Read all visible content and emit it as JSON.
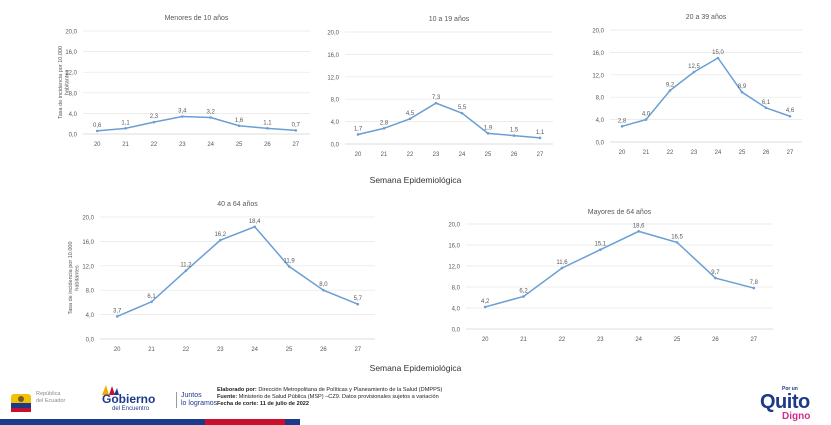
{
  "chart_data": [
    {
      "type": "line",
      "title": "Menores de 10 años",
      "ylabel": "Tasa de incidencia por 10.000 habitantes",
      "x": [
        "20",
        "21",
        "22",
        "23",
        "24",
        "25",
        "26",
        "27"
      ],
      "values": [
        0.6,
        1.1,
        2.3,
        3.4,
        3.2,
        1.6,
        1.1,
        0.7
      ],
      "labels": [
        "0,6",
        "1,1",
        "2,3",
        "3,4",
        "3,2",
        "1,6",
        "1,1",
        "0,7"
      ],
      "yticks": [
        "0,0",
        "4,0",
        "8,0",
        "12,0",
        "16,0",
        "20,0"
      ],
      "ylim": [
        0,
        20
      ]
    },
    {
      "type": "line",
      "title": "10 a 19 años",
      "x": [
        "20",
        "21",
        "22",
        "23",
        "24",
        "25",
        "26",
        "27"
      ],
      "values": [
        1.7,
        2.8,
        4.5,
        7.3,
        5.5,
        1.9,
        1.5,
        1.1
      ],
      "labels": [
        "1,7",
        "2,8",
        "4,5",
        "7,3",
        "5,5",
        "1,9",
        "1,5",
        "1,1"
      ],
      "yticks": [
        "0,0",
        "4,0",
        "8,0",
        "12,0",
        "16,0",
        "20,0"
      ],
      "ylim": [
        0,
        20
      ]
    },
    {
      "type": "line",
      "title": "20 a 39 años",
      "x": [
        "20",
        "21",
        "22",
        "23",
        "24",
        "25",
        "26",
        "27"
      ],
      "values": [
        2.8,
        4.0,
        9.2,
        12.5,
        15.0,
        8.9,
        6.1,
        4.6
      ],
      "labels": [
        "2,8",
        "4,0",
        "9,2",
        "12,5",
        "15,0",
        "8,9",
        "6,1",
        "4,6"
      ],
      "yticks": [
        "0,0",
        "4,0",
        "8,0",
        "12,0",
        "16,0",
        "20,0"
      ],
      "ylim": [
        0,
        20
      ]
    },
    {
      "type": "line",
      "title": "40 a 64 años",
      "ylabel": "Tasa de incidencia por 10.000 habitantes",
      "x": [
        "20",
        "21",
        "22",
        "23",
        "24",
        "25",
        "26",
        "27"
      ],
      "values": [
        3.7,
        6.1,
        11.2,
        16.2,
        18.4,
        11.9,
        8.0,
        5.7
      ],
      "labels": [
        "3,7",
        "6,1",
        "11,2",
        "16,2",
        "18,4",
        "11,9",
        "8,0",
        "5,7"
      ],
      "yticks": [
        "0,0",
        "4,0",
        "8,0",
        "12,0",
        "16,0",
        "20,0"
      ],
      "ylim": [
        0,
        20
      ]
    },
    {
      "type": "line",
      "title": "Mayores de 64 años",
      "x": [
        "20",
        "21",
        "22",
        "23",
        "24",
        "25",
        "26",
        "27"
      ],
      "values": [
        4.2,
        6.2,
        11.6,
        15.1,
        18.6,
        16.5,
        9.7,
        7.8
      ],
      "labels": [
        "4,2",
        "6,2",
        "11,6",
        "15,1",
        "18,6",
        "16,5",
        "9,7",
        "7,8"
      ],
      "yticks": [
        "0,0",
        "4,0",
        "8,0",
        "12,0",
        "16,0",
        "20,0"
      ],
      "ylim": [
        0,
        20
      ]
    }
  ],
  "section_labels": [
    "Semana Epidemiológica",
    "Semana Epidemiológica"
  ],
  "colors": {
    "line": "#6a9fd4",
    "grid": "#e6e6e6",
    "text": "#595959"
  },
  "footer": {
    "republica_line1": "República",
    "republica_line2": "del Ecuador",
    "gobierno": "Gobierno",
    "gobierno_sub": "del Encuentro",
    "juntos_line1": "Juntos",
    "juntos_line2": "lo logramos",
    "elaborado_label": "Elaborado por:",
    "elaborado_text": "Dirección Metropolitana de Políticas y Planeamiento de la Salud (DMPPS)",
    "fuente_label": "Fuente:",
    "fuente_text": "Ministerio de Salud Pública (MSP) –CZ9. Datos provisionales sujetos a variación",
    "fecha_text": "Fecha de corte: 11 de julio de 2022",
    "quito_small": "Por un",
    "quito_big": "Quito",
    "quito_diag": "Digno"
  }
}
